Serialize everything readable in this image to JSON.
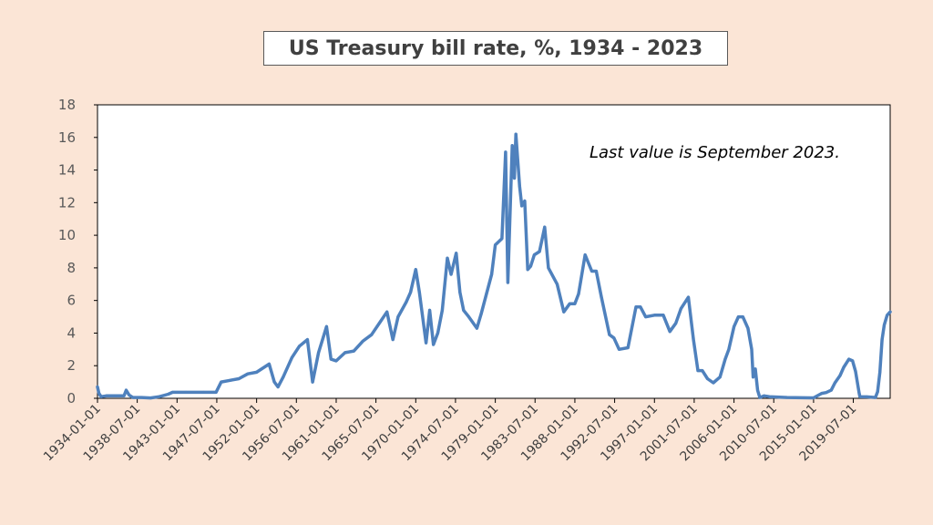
{
  "chart_data": {
    "type": "line",
    "title": "US Treasury bill rate, %, 1934 - 2023",
    "xlabel": "",
    "ylabel": "",
    "annotation": "Last value is September 2023.",
    "ylim": [
      0,
      18
    ],
    "yticks": [
      0,
      2,
      4,
      6,
      8,
      10,
      12,
      14,
      16,
      18
    ],
    "xlim": [
      "1934-01-01",
      "2023-09-01"
    ],
    "xtick_labels": [
      "1934-01-01",
      "1938-07-01",
      "1943-01-01",
      "1947-07-01",
      "1952-01-01",
      "1956-07-01",
      "1961-01-01",
      "1965-07-01",
      "1970-01-01",
      "1974-07-01",
      "1979-01-01",
      "1983-07-01",
      "1988-01-01",
      "1992-07-01",
      "1997-01-01",
      "2001-07-01",
      "2006-01-01",
      "2010-07-01",
      "2015-01-01",
      "2019-07-01"
    ],
    "grid": false,
    "line_color": "#4f81bd",
    "series": [
      {
        "x": [
          "1934-01-01",
          "1934-03-01",
          "1934-06-01",
          "1935-01-01",
          "1936-01-01",
          "1937-01-01",
          "1937-04-01",
          "1937-08-01",
          "1938-01-01",
          "1939-01-01",
          "1940-01-01",
          "1941-01-01",
          "1942-01-01",
          "1942-07-01",
          "1943-01-01",
          "1944-01-01",
          "1946-01-01",
          "1947-06-01",
          "1948-01-01",
          "1949-01-01",
          "1950-01-01",
          "1951-01-01",
          "1952-01-01",
          "1953-06-01",
          "1954-01-01",
          "1954-06-01",
          "1955-01-01",
          "1956-01-01",
          "1956-11-01",
          "1957-10-01",
          "1958-05-01",
          "1959-01-01",
          "1959-12-01",
          "1960-06-01",
          "1961-01-01",
          "1962-01-01",
          "1963-01-01",
          "1964-01-01",
          "1965-01-01",
          "1966-01-01",
          "1966-10-01",
          "1967-06-01",
          "1968-01-01",
          "1968-12-01",
          "1969-06-01",
          "1970-01-01",
          "1970-06-01",
          "1971-03-01",
          "1971-08-01",
          "1972-01-01",
          "1972-07-01",
          "1973-01-01",
          "1973-08-01",
          "1974-01-01",
          "1974-08-01",
          "1975-01-01",
          "1975-06-01",
          "1976-01-01",
          "1976-12-01",
          "1977-06-01",
          "1978-01-01",
          "1978-08-01",
          "1979-01-01",
          "1979-10-01",
          "1980-03-01",
          "1980-06-01",
          "1980-12-01",
          "1981-03-01",
          "1981-05-01",
          "1981-10-01",
          "1982-01-01",
          "1982-05-01",
          "1982-09-01",
          "1983-01-01",
          "1983-06-01",
          "1984-01-01",
          "1984-08-01",
          "1985-01-01",
          "1986-01-01",
          "1986-10-01",
          "1987-06-01",
          "1988-01-01",
          "1988-06-01",
          "1989-03-01",
          "1989-12-01",
          "1990-06-01",
          "1991-01-01",
          "1991-12-01",
          "1992-06-01",
          "1993-01-01",
          "1994-01-01",
          "1994-12-01",
          "1995-06-01",
          "1996-01-01",
          "1997-01-01",
          "1998-01-01",
          "1998-10-01",
          "1999-06-01",
          "2000-01-01",
          "2000-11-01",
          "2001-06-01",
          "2001-12-01",
          "2002-06-01",
          "2003-01-01",
          "2003-09-01",
          "2004-06-01",
          "2005-01-01",
          "2005-06-01",
          "2006-01-01",
          "2006-07-01",
          "2007-01-01",
          "2007-08-01",
          "2008-01-01",
          "2008-03-01",
          "2008-06-01",
          "2008-09-01",
          "2008-12-01",
          "2009-06-01",
          "2010-01-01",
          "2012-01-01",
          "2015-01-01",
          "2015-12-01",
          "2016-06-01",
          "2017-01-01",
          "2017-06-01",
          "2018-01-01",
          "2018-06-01",
          "2019-01-01",
          "2019-06-01",
          "2019-10-01",
          "2020-03-01",
          "2020-04-01",
          "2021-01-01",
          "2022-01-01",
          "2022-04-01",
          "2022-07-01",
          "2022-10-01",
          "2023-01-01",
          "2023-05-01",
          "2023-09-01"
        ],
        "values": [
          0.7,
          0.3,
          0.1,
          0.15,
          0.15,
          0.15,
          0.5,
          0.2,
          0.05,
          0.05,
          0.02,
          0.1,
          0.25,
          0.37,
          0.37,
          0.37,
          0.37,
          0.37,
          1.0,
          1.1,
          1.2,
          1.5,
          1.6,
          2.1,
          1.0,
          0.7,
          1.3,
          2.5,
          3.2,
          3.6,
          1.0,
          2.8,
          4.4,
          2.4,
          2.3,
          2.8,
          2.9,
          3.5,
          3.9,
          4.7,
          5.3,
          3.6,
          5.0,
          5.9,
          6.5,
          7.9,
          6.5,
          3.4,
          5.4,
          3.3,
          4.0,
          5.4,
          8.6,
          7.6,
          8.9,
          6.5,
          5.4,
          5.0,
          4.3,
          5.2,
          6.4,
          7.6,
          9.4,
          9.8,
          15.1,
          7.1,
          15.5,
          13.5,
          16.2,
          13.0,
          11.8,
          12.1,
          7.9,
          8.1,
          8.8,
          9.0,
          10.5,
          8.0,
          7.0,
          5.3,
          5.8,
          5.8,
          6.4,
          8.8,
          7.8,
          7.8,
          6.2,
          3.9,
          3.7,
          3.0,
          3.1,
          5.6,
          5.6,
          5.0,
          5.1,
          5.1,
          4.1,
          4.6,
          5.5,
          6.2,
          3.6,
          1.7,
          1.7,
          1.2,
          0.95,
          1.3,
          2.4,
          3.0,
          4.4,
          5.0,
          5.0,
          4.3,
          3.0,
          1.3,
          1.8,
          0.5,
          0.05,
          0.15,
          0.1,
          0.05,
          0.03,
          0.3,
          0.35,
          0.5,
          0.95,
          1.4,
          1.9,
          2.4,
          2.3,
          1.65,
          0.3,
          0.1,
          0.09,
          0.05,
          0.4,
          1.6,
          3.6,
          4.5,
          5.1,
          5.3
        ]
      }
    ]
  }
}
